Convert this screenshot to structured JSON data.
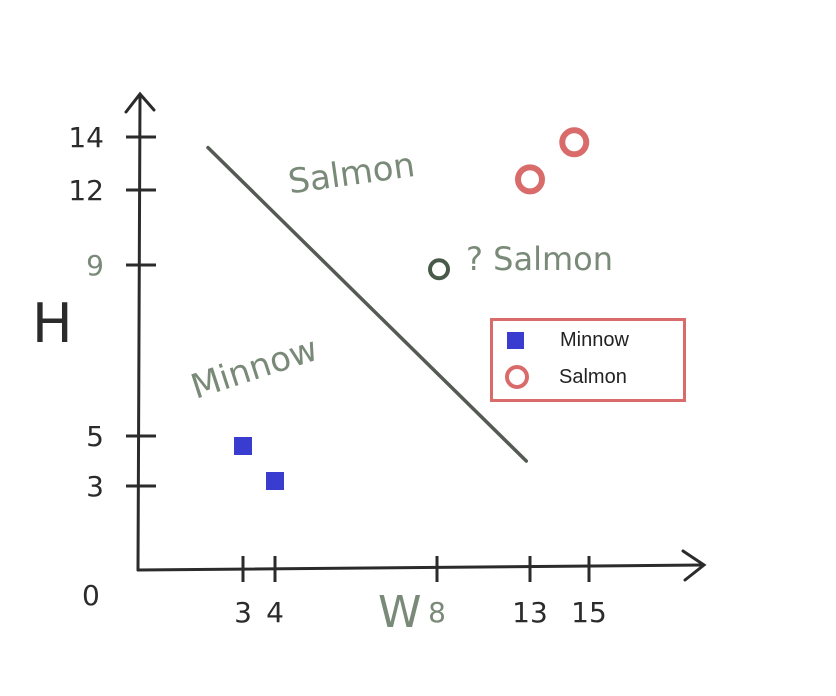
{
  "chart_data": {
    "type": "scatter",
    "xlabel": "W",
    "ylabel": "H",
    "origin_label": "0",
    "x_ticks": [
      3,
      4,
      8,
      13,
      15
    ],
    "y_ticks": [
      3,
      5,
      9,
      12,
      14
    ],
    "series": [
      {
        "name": "Minnow",
        "color": "#3a3ccf",
        "marker": "square",
        "points": [
          {
            "x": 3,
            "y": 4.6
          },
          {
            "x": 4,
            "y": 3.2
          }
        ]
      },
      {
        "name": "Salmon",
        "color": "#d96b6b",
        "marker": "ring",
        "points": [
          {
            "x": 13,
            "y": 12.4
          },
          {
            "x": 14.5,
            "y": 13.8
          }
        ]
      }
    ],
    "unknown_point": {
      "x": 8.7,
      "y": 8.9,
      "color": "#4a5a4a",
      "label": "? Salmon"
    },
    "boundary": {
      "from": {
        "x": 2,
        "y": 13.6
      },
      "to": {
        "x": 12.8,
        "y": 4.0
      },
      "color": "#555a55"
    },
    "region_labels": [
      {
        "text": "Salmon",
        "x": 8.2,
        "y": 13.9
      },
      {
        "text": "Minnow",
        "x": 3.0,
        "y": 7.2
      }
    ],
    "legend": {
      "position": "right",
      "entries": [
        "Minnow",
        "Salmon"
      ]
    }
  },
  "axis_color": "#2b2b2b",
  "label_color": "#7a8a78"
}
